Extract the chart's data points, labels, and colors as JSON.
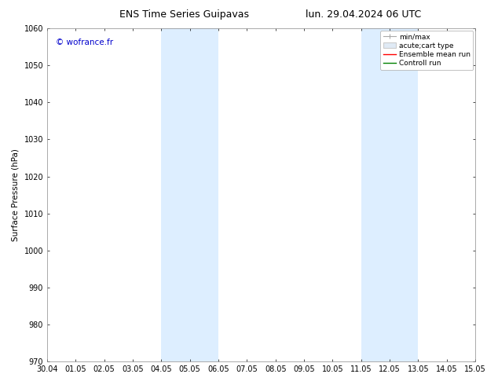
{
  "title_left": "ENS Time Series Guipavas",
  "title_right": "lun. 29.04.2024 06 UTC",
  "ylabel": "Surface Pressure (hPa)",
  "ylim": [
    970,
    1060
  ],
  "yticks": [
    970,
    980,
    990,
    1000,
    1010,
    1020,
    1030,
    1040,
    1050,
    1060
  ],
  "xlim": [
    0,
    15
  ],
  "xtick_labels": [
    "30.04",
    "01.05",
    "02.05",
    "03.05",
    "04.05",
    "05.05",
    "06.05",
    "07.05",
    "08.05",
    "09.05",
    "10.05",
    "11.05",
    "12.05",
    "13.05",
    "14.05",
    "15.05"
  ],
  "shade_regions": [
    {
      "x_start": 4.0,
      "x_end": 6.0
    },
    {
      "x_start": 11.0,
      "x_end": 13.0
    }
  ],
  "shade_color": "#ddeeff",
  "watermark": "© wofrance.fr",
  "watermark_color": "#0000cc",
  "legend_items": [
    {
      "label": "min/max",
      "color": "#aaaaaa",
      "type": "errorbar"
    },
    {
      "label": "acute;cart type",
      "color": "#cccccc",
      "type": "box"
    },
    {
      "label": "Ensemble mean run",
      "color": "#ff0000",
      "type": "line"
    },
    {
      "label": "Controll run",
      "color": "#008000",
      "type": "line"
    }
  ],
  "bg_color": "#ffffff",
  "spine_color": "#888888",
  "title_fontsize": 9,
  "axis_label_fontsize": 7.5,
  "tick_fontsize": 7,
  "watermark_fontsize": 7.5,
  "legend_fontsize": 6.5
}
